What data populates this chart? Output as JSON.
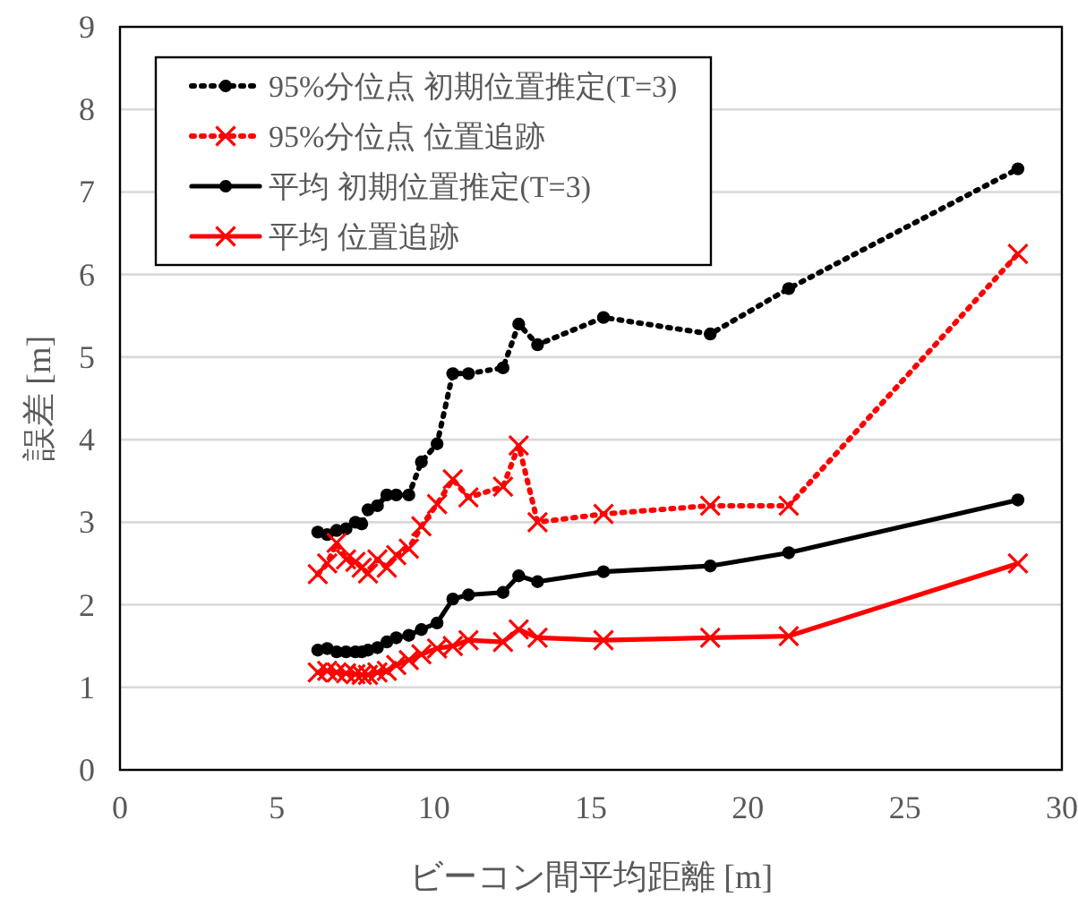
{
  "chart_data": {
    "type": "line",
    "xlabel": "ビーコン間平均距離 [m]",
    "ylabel": "誤差 [m]",
    "x": [
      6.3,
      6.6,
      6.9,
      7.2,
      7.5,
      7.7,
      7.9,
      8.2,
      8.5,
      8.8,
      9.2,
      9.6,
      10.1,
      10.6,
      11.1,
      12.2,
      12.7,
      13.3,
      15.4,
      18.8,
      21.3,
      28.6
    ],
    "xlim": [
      0,
      30
    ],
    "xticks": [
      0,
      5,
      10,
      15,
      20,
      25,
      30
    ],
    "ylim": [
      0,
      9
    ],
    "yticks": [
      0,
      1,
      2,
      3,
      4,
      5,
      6,
      7,
      8,
      9
    ],
    "grid": "y",
    "legend": "top left",
    "series": [
      {
        "name": "95%分位点 初期位置推定(T=3)",
        "color": "#000000",
        "marker": "circle",
        "line_style": "dotted",
        "values": [
          2.88,
          2.85,
          2.9,
          2.92,
          3.0,
          2.98,
          3.15,
          3.2,
          3.33,
          3.33,
          3.33,
          3.73,
          3.95,
          4.8,
          4.8,
          4.87,
          5.4,
          5.15,
          5.48,
          5.28,
          5.83,
          7.28
        ]
      },
      {
        "name": "95%分位点 位置追跡",
        "color": "#ff0000",
        "marker": "cross",
        "line_style": "dotted",
        "values": [
          2.37,
          2.5,
          2.75,
          2.55,
          2.52,
          2.45,
          2.38,
          2.55,
          2.45,
          2.6,
          2.68,
          2.95,
          3.22,
          3.52,
          3.3,
          3.43,
          3.93,
          3.0,
          3.1,
          3.2,
          3.2,
          6.25
        ]
      },
      {
        "name": "平均 初期位置推定(T=3)",
        "color": "#000000",
        "marker": "circle",
        "line_style": "solid",
        "values": [
          1.45,
          1.47,
          1.43,
          1.43,
          1.43,
          1.43,
          1.45,
          1.48,
          1.55,
          1.6,
          1.63,
          1.7,
          1.78,
          2.07,
          2.12,
          2.15,
          2.35,
          2.28,
          2.4,
          2.47,
          2.63,
          3.27
        ]
      },
      {
        "name": "平均 位置追跡",
        "color": "#ff0000",
        "marker": "cross",
        "line_style": "solid",
        "values": [
          1.18,
          1.2,
          1.18,
          1.17,
          1.16,
          1.15,
          1.15,
          1.18,
          1.2,
          1.27,
          1.33,
          1.4,
          1.47,
          1.5,
          1.57,
          1.55,
          1.7,
          1.6,
          1.57,
          1.6,
          1.62,
          2.5
        ]
      }
    ]
  }
}
